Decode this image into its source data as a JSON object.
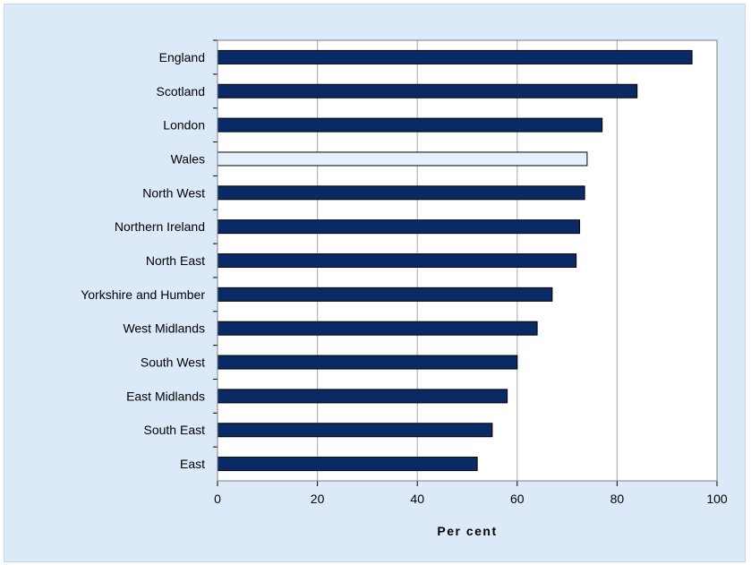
{
  "chart_data": {
    "type": "bar",
    "orientation": "horizontal",
    "categories": [
      "England",
      "Scotland",
      "London",
      "Wales",
      "North West",
      "Northern Ireland",
      "North East",
      "Yorkshire and Humber",
      "West Midlands",
      "South West",
      "East Midlands",
      "South East",
      "East"
    ],
    "values": [
      95,
      84,
      77,
      74,
      73.5,
      72.5,
      71.8,
      67,
      64,
      60,
      58,
      55,
      52
    ],
    "highlight_category": "Wales",
    "xlabel": "Per cent",
    "xlim": [
      0,
      100
    ],
    "xticks": [
      "0",
      "20",
      "40",
      "60",
      "80",
      "100"
    ],
    "grid": "vertical",
    "colors": {
      "bar": "#0a2a66",
      "highlight": "#e4f1fd",
      "background": "#dce9f8",
      "plot": "#ffffff",
      "gridline": "#b5b5b5"
    }
  }
}
